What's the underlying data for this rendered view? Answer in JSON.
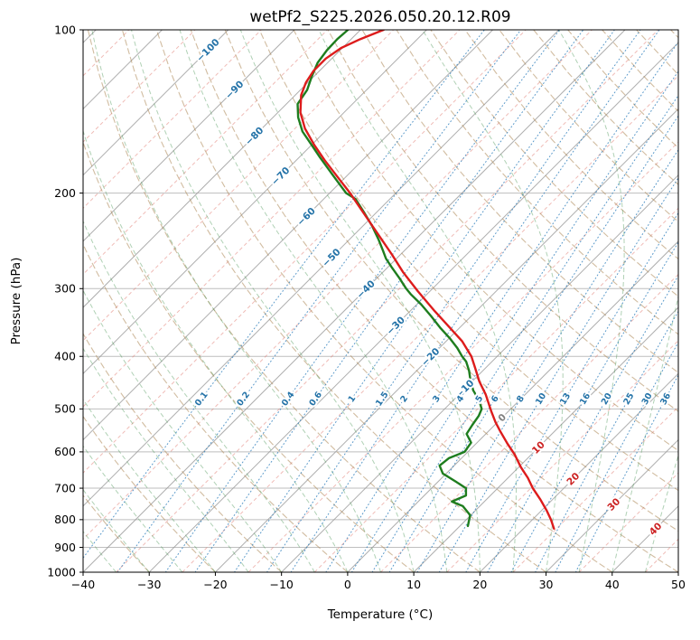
{
  "title": "wetPf2_S225.2026.050.20.12.R09",
  "axes": {
    "xlabel": "Temperature (°C)",
    "ylabel": "Pressure (hPa)",
    "x_min": -40,
    "x_max": 50,
    "p_top": 100,
    "p_bottom": 1000,
    "skew_deg": 45,
    "x_ticks": [
      {
        "v": -40,
        "label": "−40"
      },
      {
        "v": -30,
        "label": "−30"
      },
      {
        "v": -20,
        "label": "−20"
      },
      {
        "v": -10,
        "label": "−10"
      },
      {
        "v": 0,
        "label": "0"
      },
      {
        "v": 10,
        "label": "10"
      },
      {
        "v": 20,
        "label": "20"
      },
      {
        "v": 30,
        "label": "30"
      },
      {
        "v": 40,
        "label": "40"
      },
      {
        "v": 50,
        "label": "50"
      }
    ],
    "y_ticks": [
      {
        "v": 100,
        "label": "100"
      },
      {
        "v": 200,
        "label": "200"
      },
      {
        "v": 300,
        "label": "300"
      },
      {
        "v": 400,
        "label": "400"
      },
      {
        "v": 500,
        "label": "500"
      },
      {
        "v": 600,
        "label": "600"
      },
      {
        "v": 700,
        "label": "700"
      },
      {
        "v": 800,
        "label": "800"
      },
      {
        "v": 900,
        "label": "900"
      },
      {
        "v": 1000,
        "label": "1000"
      }
    ]
  },
  "style": {
    "grid_color": "#b3b3b3",
    "isotherm_color": "#9a9a9a",
    "isotherm_minor_color": "#e07a70",
    "dry_adiabat_color": "#ab8552",
    "moist_adiabat_color": "#4f9a5a",
    "mixing_color": "#2e7ebc",
    "temperature_color": "#dd1c1c",
    "dewpoint_color": "#1e7d1e",
    "label_cold": "#2473a8",
    "label_warm": "#cc2222",
    "label_zero": "#808080",
    "label_mixing": "#2473a8",
    "axis_color": "#000000"
  },
  "chart_data": {
    "type": "line",
    "subtype": "skewt-log-p",
    "grid": true,
    "isotherms": {
      "start": -150,
      "end": 50,
      "step": 10
    },
    "isotherms_minor": {
      "start": -155,
      "end": 45,
      "step": 10
    },
    "dry_adiabats_c": [
      -40,
      -30,
      -20,
      -10,
      0,
      10,
      20,
      30,
      40,
      50,
      60,
      70,
      80,
      90,
      100,
      110,
      120,
      130,
      140,
      150,
      160,
      170,
      180,
      190
    ],
    "moist_adiabats_start_c": [
      -40,
      -35,
      -30,
      -25,
      -20,
      -15,
      -10,
      -5,
      0,
      5,
      10,
      15,
      20,
      25,
      30,
      35,
      40,
      45
    ],
    "mixing_ratio_g_kg": [
      0.1,
      0.2,
      0.4,
      0.6,
      1,
      1.5,
      2,
      3,
      4,
      5,
      6,
      8,
      10,
      13,
      16,
      20,
      25,
      30,
      36
    ],
    "mixing_ratio_labels": [
      "0.1",
      "0.2",
      "0.4",
      "0.6",
      "1",
      "1.5",
      "2",
      "3",
      "4",
      "5",
      "6",
      "8",
      "10",
      "13",
      "16",
      "20",
      "25",
      "30",
      "36"
    ],
    "mixing_label_p": 479,
    "isotherm_labels": [
      {
        "t": -100,
        "label": "−100",
        "p": 109,
        "color_key": "cold"
      },
      {
        "t": -90,
        "label": "−90",
        "p": 129,
        "color_key": "cold"
      },
      {
        "t": -80,
        "label": "−80",
        "p": 157,
        "color_key": "cold"
      },
      {
        "t": -70,
        "label": "−70",
        "p": 186,
        "color_key": "cold"
      },
      {
        "t": -60,
        "label": "−60",
        "p": 221,
        "color_key": "cold"
      },
      {
        "t": -50,
        "label": "−50",
        "p": 263,
        "color_key": "cold"
      },
      {
        "t": -40,
        "label": "−40",
        "p": 301,
        "color_key": "cold"
      },
      {
        "t": -30,
        "label": "−30",
        "p": 351,
        "color_key": "cold"
      },
      {
        "t": -20,
        "label": "−20",
        "p": 401,
        "color_key": "cold"
      },
      {
        "t": -10,
        "label": "−10",
        "p": 459,
        "color_key": "cold"
      },
      {
        "t": 0,
        "label": "0",
        "p": 519,
        "color_key": "zero"
      },
      {
        "t": 10,
        "label": "10",
        "p": 589,
        "color_key": "warm"
      },
      {
        "t": 20,
        "label": "20",
        "p": 673,
        "color_key": "warm"
      },
      {
        "t": 30,
        "label": "30",
        "p": 750,
        "color_key": "warm"
      },
      {
        "t": 40,
        "label": "40",
        "p": 832,
        "color_key": "warm"
      }
    ],
    "series": [
      {
        "name": "temperature",
        "color": "#dd1c1c"
      },
      {
        "name": "dewpoint",
        "color": "#1e7d1e"
      }
    ],
    "temperature_profile_p_t": [
      [
        831,
        24.6
      ],
      [
        800,
        22.8
      ],
      [
        770,
        20.8
      ],
      [
        735,
        18.2
      ],
      [
        700,
        15.3
      ],
      [
        670,
        13.0
      ],
      [
        640,
        10.3
      ],
      [
        607,
        7.5
      ],
      [
        580,
        4.8
      ],
      [
        550,
        1.8
      ],
      [
        529,
        -0.3
      ],
      [
        505,
        -2.6
      ],
      [
        470,
        -6.0
      ],
      [
        445,
        -8.9
      ],
      [
        420,
        -11.6
      ],
      [
        400,
        -13.9
      ],
      [
        375,
        -17.6
      ],
      [
        353,
        -21.7
      ],
      [
        330,
        -26.3
      ],
      [
        303,
        -31.9
      ],
      [
        280,
        -36.9
      ],
      [
        260,
        -41.2
      ],
      [
        240,
        -46.0
      ],
      [
        223,
        -50.4
      ],
      [
        210,
        -54.0
      ],
      [
        200,
        -56.9
      ],
      [
        186,
        -61.5
      ],
      [
        174,
        -65.7
      ],
      [
        163,
        -69.6
      ],
      [
        152,
        -73.5
      ],
      [
        142,
        -76.6
      ],
      [
        132,
        -79.1
      ],
      [
        125,
        -80.3
      ],
      [
        119,
        -80.9
      ],
      [
        113,
        -80.9
      ],
      [
        108,
        -80.2
      ],
      [
        104,
        -78.6
      ],
      [
        100,
        -76.5
      ]
    ],
    "dewpoint_profile_p_t": [
      [
        822,
        11.2
      ],
      [
        785,
        9.9
      ],
      [
        755,
        7.4
      ],
      [
        741,
        5.1
      ],
      [
        722,
        6.3
      ],
      [
        700,
        5.2
      ],
      [
        681,
        2.7
      ],
      [
        658,
        -0.5
      ],
      [
        636,
        -2.2
      ],
      [
        616,
        -1.9
      ],
      [
        600,
        -0.5
      ],
      [
        577,
        -0.9
      ],
      [
        556,
        -2.9
      ],
      [
        535,
        -3.4
      ],
      [
        515,
        -3.8
      ],
      [
        500,
        -4.4
      ],
      [
        482,
        -6.1
      ],
      [
        462,
        -8.5
      ],
      [
        442,
        -10.5
      ],
      [
        425,
        -12.1
      ],
      [
        409,
        -13.9
      ],
      [
        400,
        -15.3
      ],
      [
        386,
        -17.3
      ],
      [
        371,
        -19.8
      ],
      [
        355,
        -22.8
      ],
      [
        337,
        -26.1
      ],
      [
        321,
        -29.3
      ],
      [
        307,
        -32.5
      ],
      [
        300,
        -34.0
      ],
      [
        287,
        -36.6
      ],
      [
        275,
        -39.2
      ],
      [
        264,
        -41.6
      ],
      [
        255,
        -43.3
      ],
      [
        244,
        -45.5
      ],
      [
        230,
        -48.6
      ],
      [
        217,
        -51.9
      ],
      [
        205,
        -55.2
      ],
      [
        200,
        -57.5
      ],
      [
        186,
        -62.0
      ],
      [
        172,
        -66.8
      ],
      [
        163,
        -70.0
      ],
      [
        154,
        -73.4
      ],
      [
        145,
        -76.2
      ],
      [
        137,
        -78.3
      ],
      [
        129,
        -79.0
      ],
      [
        122,
        -80.3
      ],
      [
        115,
        -81.5
      ],
      [
        109,
        -82.0
      ],
      [
        104,
        -82.1
      ],
      [
        100,
        -81.9
      ]
    ]
  }
}
